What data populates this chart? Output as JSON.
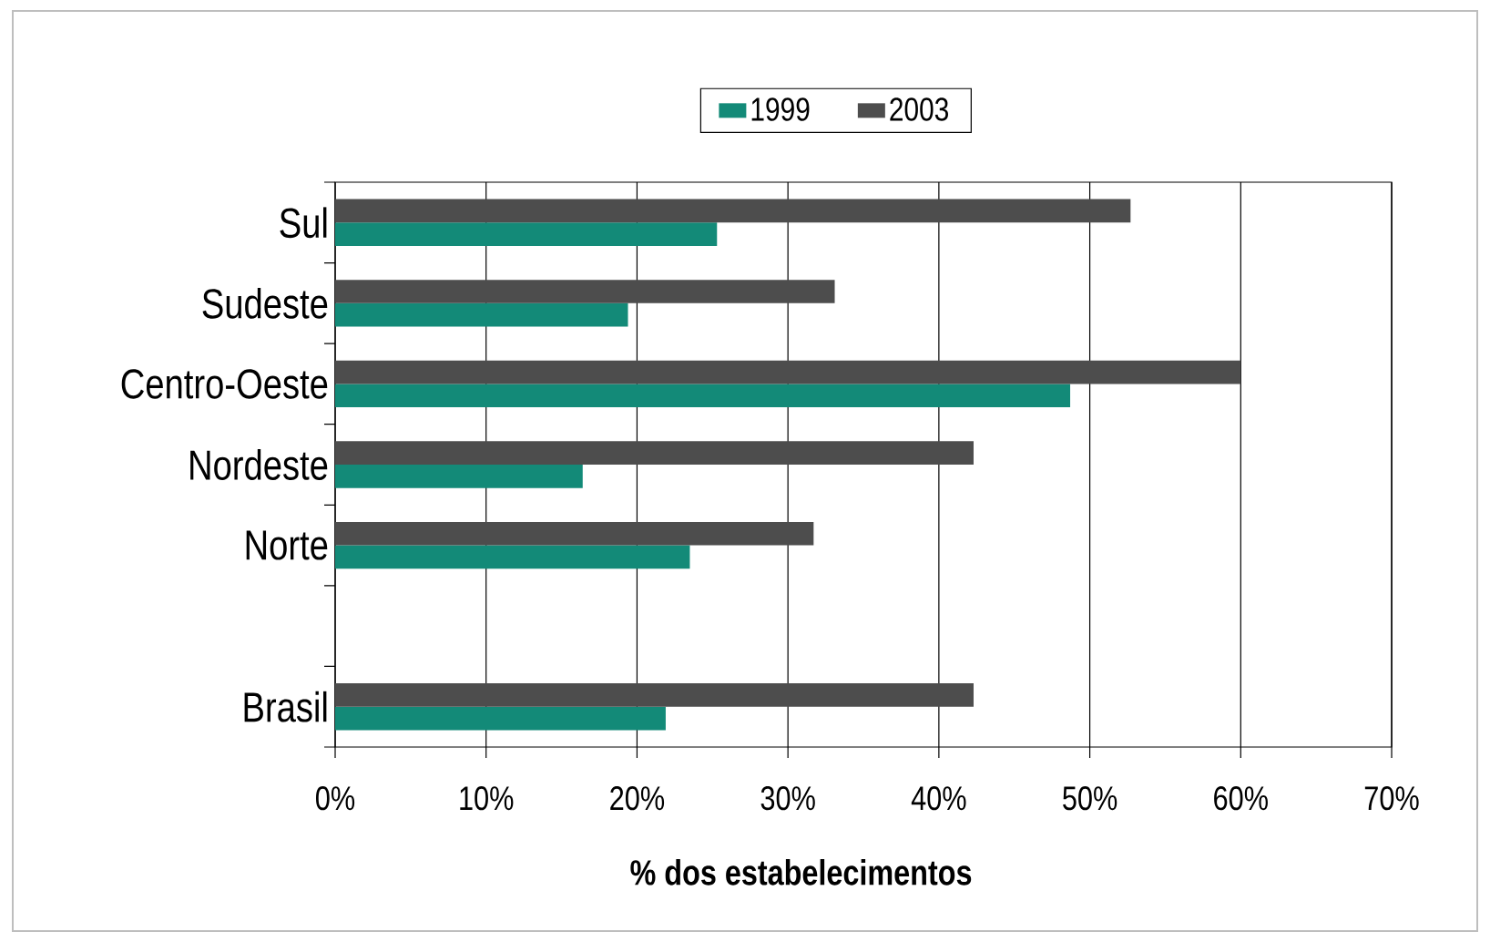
{
  "chart_data": {
    "type": "bar",
    "orientation": "horizontal",
    "categories": [
      "Sul",
      "Sudeste",
      "Centro-Oeste",
      "Nordeste",
      "Norte",
      null,
      "Brasil"
    ],
    "series": [
      {
        "name": "1999",
        "color": "#138a78",
        "values": [
          25.3,
          19.4,
          48.7,
          16.4,
          23.5,
          null,
          21.9
        ]
      },
      {
        "name": "2003",
        "color": "#4d4d4d",
        "values": [
          52.7,
          33.1,
          60,
          42.3,
          31.7,
          null,
          42.3
        ]
      }
    ],
    "xlabel": "% dos estabelecimentos",
    "xlim": [
      0,
      70
    ],
    "xticks": [
      {
        "value": 0,
        "label": "0%"
      },
      {
        "value": 10,
        "label": "10%"
      },
      {
        "value": 20,
        "label": "20%"
      },
      {
        "value": 30,
        "label": "30%"
      },
      {
        "value": 40,
        "label": "40%"
      },
      {
        "value": 50,
        "label": "50%"
      },
      {
        "value": 60,
        "label": "60%"
      },
      {
        "value": 70,
        "label": "70%"
      }
    ],
    "grid": "x",
    "legend": "top"
  }
}
